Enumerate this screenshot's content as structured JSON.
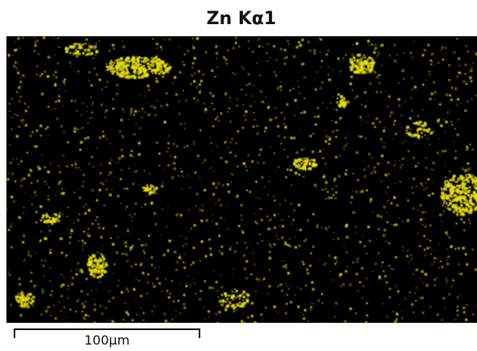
{
  "title": "Zn Kα1",
  "scale_bar": {
    "label": "100μm"
  }
}
